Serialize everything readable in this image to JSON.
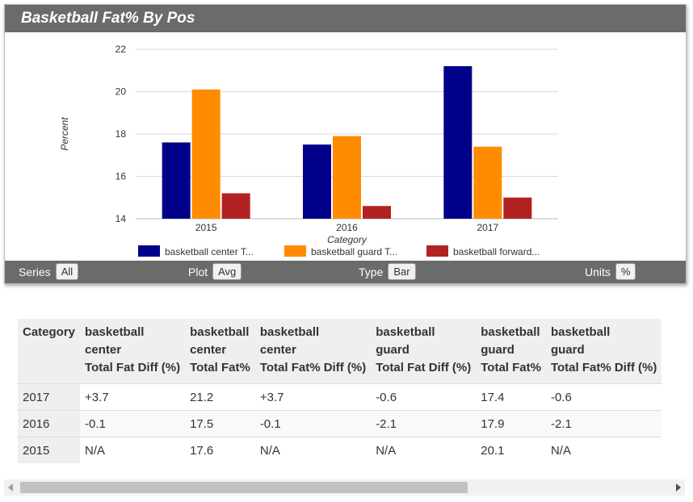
{
  "title": "Basketball Fat% By Pos",
  "chart_data": {
    "type": "bar",
    "categories": [
      "2015",
      "2016",
      "2017"
    ],
    "series": [
      {
        "name": "basketball center T...",
        "color": "#00008b",
        "values": [
          17.6,
          17.5,
          21.2
        ]
      },
      {
        "name": "basketball guard T...",
        "color": "#ff8c00",
        "values": [
          20.1,
          17.9,
          17.4
        ]
      },
      {
        "name": "basketball forward...",
        "color": "#b22222",
        "values": [
          15.2,
          14.6,
          15.0
        ]
      }
    ],
    "xlabel": "Category",
    "ylabel": "Percent",
    "ylim": [
      14,
      22
    ],
    "yticks": [
      "14",
      "16",
      "18",
      "20",
      "22"
    ],
    "grid": true,
    "legend": "bottom"
  },
  "controls": {
    "series_label": "Series",
    "series_value": "All",
    "plot_label": "Plot",
    "plot_value": "Avg",
    "type_label": "Type",
    "type_value": "Bar",
    "units_label": "Units",
    "units_value": "%"
  },
  "table": {
    "headers": [
      [
        "Category"
      ],
      [
        "basketball",
        "center",
        "Total Fat Diff (%)"
      ],
      [
        "basketball",
        "center",
        "Total Fat%"
      ],
      [
        "basketball",
        "center",
        "Total Fat% Diff (%)"
      ],
      [
        "basketball",
        "guard",
        "Total Fat Diff (%)"
      ],
      [
        "basketball",
        "guard",
        "Total Fat%"
      ],
      [
        "basketball",
        "guard",
        "Total Fat% Diff (%)"
      ]
    ],
    "rows": [
      [
        "2017",
        "+3.7",
        "21.2",
        "+3.7",
        "-0.6",
        "17.4",
        "-0.6"
      ],
      [
        "2016",
        "-0.1",
        "17.5",
        "-0.1",
        "-2.1",
        "17.9",
        "-2.1"
      ],
      [
        "2015",
        "N/A",
        "17.6",
        "N/A",
        "N/A",
        "20.1",
        "N/A"
      ]
    ]
  }
}
